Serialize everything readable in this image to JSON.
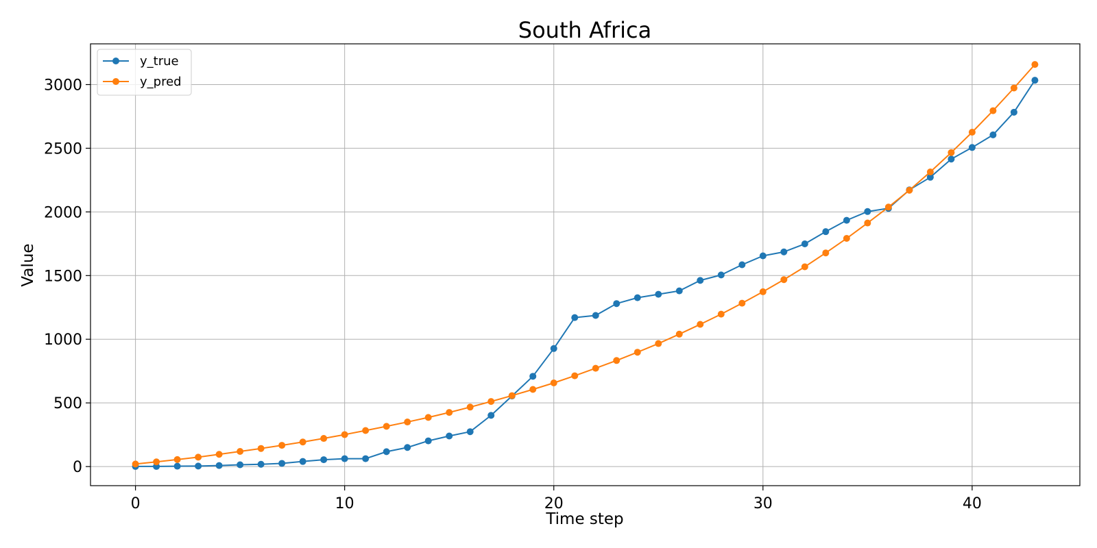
{
  "chart_data": {
    "type": "line",
    "title": "South Africa",
    "xlabel": "Time step",
    "ylabel": "Value",
    "xlim": [
      -2.15,
      45.15
    ],
    "ylim": [
      -150,
      3320
    ],
    "xticks": [
      0,
      10,
      20,
      30,
      40
    ],
    "yticks": [
      0,
      500,
      1000,
      1500,
      2000,
      2500,
      3000
    ],
    "grid": true,
    "legend_position": "top-left",
    "x": [
      0,
      1,
      2,
      3,
      4,
      5,
      6,
      7,
      8,
      9,
      10,
      11,
      12,
      13,
      14,
      15,
      16,
      17,
      18,
      19,
      20,
      21,
      22,
      23,
      24,
      25,
      26,
      27,
      28,
      29,
      30,
      31,
      32,
      33,
      34,
      35,
      36,
      37,
      38,
      39,
      40,
      41,
      42,
      43
    ],
    "series": [
      {
        "name": "y_true",
        "color": "#1f77b4",
        "marker": "circle",
        "values": [
          1,
          1,
          3,
          4,
          8,
          14,
          18,
          25,
          40,
          54,
          62,
          62,
          117,
          150,
          202,
          240,
          274,
          402,
          554,
          709,
          927,
          1170,
          1187,
          1280,
          1326,
          1353,
          1380,
          1462,
          1505,
          1585,
          1655,
          1686,
          1749,
          1845,
          1934,
          2003,
          2028,
          2173,
          2272,
          2415,
          2506,
          2605,
          2783,
          3034
        ]
      },
      {
        "name": "y_pred",
        "color": "#ff7f0e",
        "marker": "circle",
        "values": [
          20,
          37,
          55,
          74,
          96,
          119,
          142,
          167,
          193,
          221,
          251,
          283,
          316,
          350,
          386,
          425,
          467,
          511,
          557,
          606,
          657,
          713,
          772,
          833,
          898,
          966,
          1040,
          1117,
          1197,
          1283,
          1373,
          1468,
          1569,
          1678,
          1792,
          1913,
          2038,
          2170,
          2314,
          2466,
          2626,
          2795,
          2973,
          3158
        ]
      }
    ]
  }
}
